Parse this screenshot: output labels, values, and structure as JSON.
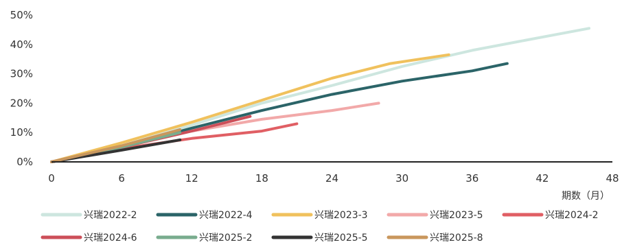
{
  "chart_data": {
    "type": "line",
    "xlabel": "期数（月）",
    "ylabel": "",
    "xlim": [
      0,
      48
    ],
    "ylim": [
      0,
      50
    ],
    "x_ticks": [
      0,
      6,
      12,
      18,
      24,
      30,
      36,
      42,
      48
    ],
    "y_ticks": [
      0,
      10,
      20,
      30,
      40,
      50
    ],
    "y_tick_suffix": "%",
    "grid": false,
    "legend_position": "bottom",
    "series": [
      {
        "name": "兴瑞2022-2",
        "color": "#cde6df",
        "x": [
          0,
          6,
          12,
          18,
          24,
          30,
          36,
          40,
          46
        ],
        "y": [
          0,
          5.5,
          12.5,
          20,
          26,
          32.5,
          38,
          41,
          45.5
        ]
      },
      {
        "name": "兴瑞2022-4",
        "color": "#2b6468",
        "x": [
          0,
          6,
          12,
          18,
          24,
          30,
          36,
          39
        ],
        "y": [
          0,
          5,
          11.5,
          17.5,
          23,
          27.5,
          31,
          33.5
        ]
      },
      {
        "name": "兴瑞2023-3",
        "color": "#f0c15d",
        "x": [
          0,
          6,
          12,
          18,
          24,
          29,
          34
        ],
        "y": [
          0,
          6.5,
          13.5,
          21,
          28.5,
          33.5,
          36.5
        ]
      },
      {
        "name": "兴瑞2023-5",
        "color": "#f2a9a9",
        "x": [
          0,
          6,
          12,
          18,
          24,
          28
        ],
        "y": [
          0,
          5,
          10.5,
          14.5,
          17.5,
          20
        ]
      },
      {
        "name": "兴瑞2024-2",
        "color": "#e05f64",
        "x": [
          0,
          6,
          12,
          18,
          21
        ],
        "y": [
          0,
          4.5,
          8,
          10.5,
          13
        ]
      },
      {
        "name": "兴瑞2024-6",
        "color": "#cc4f59",
        "x": [
          0,
          6,
          12,
          17
        ],
        "y": [
          0,
          5,
          10.5,
          15.5
        ]
      },
      {
        "name": "兴瑞2025-2",
        "color": "#79ac8e",
        "x": [
          0,
          6,
          11
        ],
        "y": [
          0,
          5,
          10
        ]
      },
      {
        "name": "兴瑞2025-5",
        "color": "#333333",
        "x": [
          0,
          6,
          11
        ],
        "y": [
          0,
          4,
          7.5
        ]
      },
      {
        "name": "兴瑞2025-8",
        "color": "#c9975d",
        "x": [
          0,
          6,
          11
        ],
        "y": [
          0,
          5.5,
          11
        ]
      }
    ]
  }
}
